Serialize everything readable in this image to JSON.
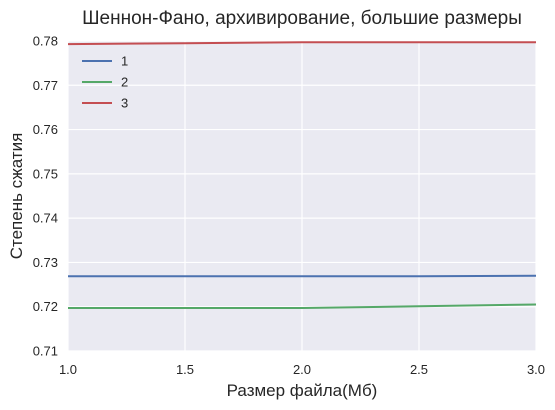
{
  "chart_data": {
    "type": "line",
    "title": "Шеннон-Фано, архивирование, большие размеры",
    "xlabel": "Размер файла(Мб)",
    "ylabel": "Степень сжатия",
    "xlim": [
      1.0,
      3.0
    ],
    "ylim": [
      0.71,
      0.78
    ],
    "xticks": [
      "1.0",
      "1.5",
      "2.0",
      "2.5",
      "3.0"
    ],
    "yticks": [
      "0.71",
      "0.72",
      "0.73",
      "0.74",
      "0.75",
      "0.76",
      "0.77",
      "0.78"
    ],
    "grid": true,
    "legend_position": "top-left",
    "series": [
      {
        "name": "1",
        "color": "#4c72b0",
        "x": [
          1.0,
          1.5,
          2.0,
          2.5,
          3.0
        ],
        "y": [
          0.7269,
          0.7269,
          0.7269,
          0.7269,
          0.727
        ]
      },
      {
        "name": "2",
        "color": "#55a868",
        "x": [
          1.0,
          1.5,
          2.0,
          2.5,
          3.0
        ],
        "y": [
          0.7197,
          0.7197,
          0.7197,
          0.7201,
          0.7205
        ]
      },
      {
        "name": "3",
        "color": "#c44e52",
        "x": [
          1.0,
          1.5,
          2.0,
          2.5,
          3.0
        ],
        "y": [
          0.7793,
          0.7795,
          0.7797,
          0.7797,
          0.7797
        ]
      }
    ]
  }
}
